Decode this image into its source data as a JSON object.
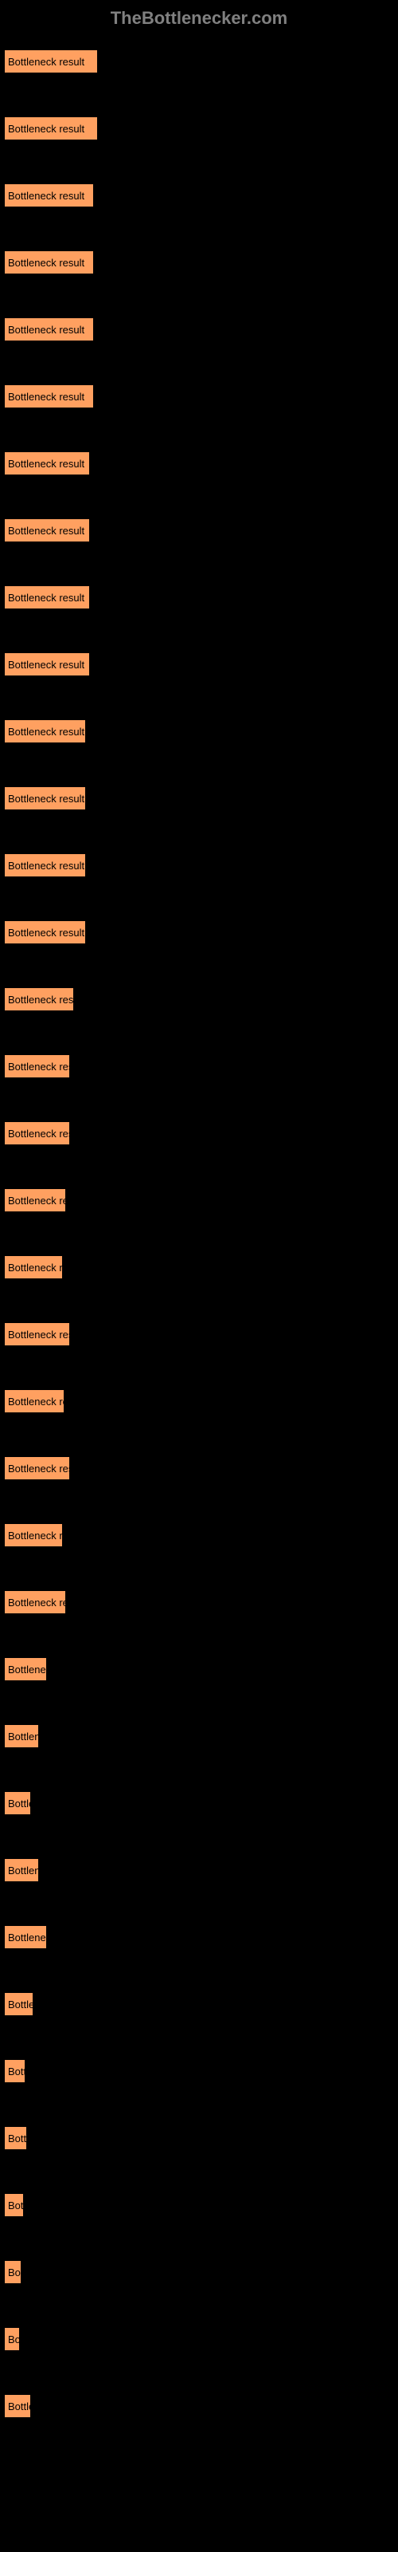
{
  "header": {
    "title": "TheBottlenecker.com"
  },
  "chart": {
    "type": "bar",
    "orientation": "horizontal",
    "bar_color": "#ffa060",
    "background_color": "#000000",
    "text_color": "#ffffff",
    "bar_text_color": "#000000",
    "max_width": 490,
    "items": [
      {
        "label": "",
        "bar_text": "Bottleneck result",
        "width_pct": 24
      },
      {
        "label": "",
        "bar_text": "Bottleneck result",
        "width_pct": 24
      },
      {
        "label": "",
        "bar_text": "Bottleneck result",
        "width_pct": 23
      },
      {
        "label": "",
        "bar_text": "Bottleneck result",
        "width_pct": 23
      },
      {
        "label": "",
        "bar_text": "Bottleneck result",
        "width_pct": 23
      },
      {
        "label": "",
        "bar_text": "Bottleneck result",
        "width_pct": 23
      },
      {
        "label": "",
        "bar_text": "Bottleneck result",
        "width_pct": 22
      },
      {
        "label": "",
        "bar_text": "Bottleneck result",
        "width_pct": 22
      },
      {
        "label": "",
        "bar_text": "Bottleneck result",
        "width_pct": 22
      },
      {
        "label": "",
        "bar_text": "Bottleneck result",
        "width_pct": 22
      },
      {
        "label": "",
        "bar_text": "Bottleneck result",
        "width_pct": 21
      },
      {
        "label": "",
        "bar_text": "Bottleneck result",
        "width_pct": 21
      },
      {
        "label": "",
        "bar_text": "Bottleneck result",
        "width_pct": 21
      },
      {
        "label": "",
        "bar_text": "Bottleneck result",
        "width_pct": 21
      },
      {
        "label": "",
        "bar_text": "Bottleneck result",
        "width_pct": 18
      },
      {
        "label": "",
        "bar_text": "Bottleneck result",
        "width_pct": 17
      },
      {
        "label": "",
        "bar_text": "Bottleneck result",
        "width_pct": 17
      },
      {
        "label": "",
        "bar_text": "Bottleneck result",
        "width_pct": 16
      },
      {
        "label": "",
        "bar_text": "Bottleneck res",
        "width_pct": 15
      },
      {
        "label": "",
        "bar_text": "Bottleneck result",
        "width_pct": 17
      },
      {
        "label": "",
        "bar_text": "Bottleneck resul",
        "width_pct": 15.5
      },
      {
        "label": "",
        "bar_text": "Bottleneck result",
        "width_pct": 17
      },
      {
        "label": "",
        "bar_text": "Bottleneck res",
        "width_pct": 15
      },
      {
        "label": "",
        "bar_text": "Bottleneck result",
        "width_pct": 16
      },
      {
        "label": "",
        "bar_text": "Bottleneck",
        "width_pct": 11
      },
      {
        "label": "",
        "bar_text": "Bottlene",
        "width_pct": 9
      },
      {
        "label": "",
        "bar_text": "Bottle",
        "width_pct": 7
      },
      {
        "label": "",
        "bar_text": "Bottlene",
        "width_pct": 9
      },
      {
        "label": "",
        "bar_text": "Bottleneck",
        "width_pct": 11
      },
      {
        "label": "",
        "bar_text": "Bottler",
        "width_pct": 7.5
      },
      {
        "label": "",
        "bar_text": "Bott",
        "width_pct": 5.5
      },
      {
        "label": "",
        "bar_text": "Bottl",
        "width_pct": 6
      },
      {
        "label": "",
        "bar_text": "Bot",
        "width_pct": 5
      },
      {
        "label": "",
        "bar_text": "Bot",
        "width_pct": 4.5
      },
      {
        "label": "",
        "bar_text": "Bo",
        "width_pct": 4
      },
      {
        "label": "",
        "bar_text": "Bottle",
        "width_pct": 7
      }
    ]
  }
}
